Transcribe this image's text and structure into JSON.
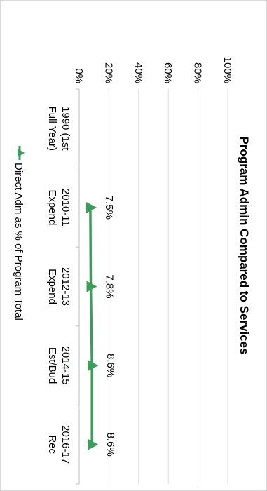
{
  "chart_data": {
    "type": "line",
    "title": "Program Admin Compared to Services",
    "categories": [
      [
        "1990 (1st",
        "Full Year)"
      ],
      [
        "2010-11",
        "Expend"
      ],
      [
        "2012-13",
        "Expend"
      ],
      [
        "2014-15",
        "Est/Bud"
      ],
      [
        "2016-17",
        "Rec"
      ]
    ],
    "series": [
      {
        "name": "Direct Adm as % of Program Total",
        "values": [
          null,
          7.5,
          7.8,
          8.6,
          8.6
        ],
        "data_labels": [
          "",
          "7.5%",
          "7.8%",
          "8.6%",
          "8.6%"
        ],
        "color": "#3a9d5a",
        "marker": "triangle"
      }
    ],
    "y_ticks": [
      "0%",
      "20%",
      "40%",
      "60%",
      "80%",
      "100%"
    ],
    "ylim": [
      0,
      100
    ],
    "grid": true,
    "legend_position": "bottom",
    "orientation": "rotated-90-clockwise"
  }
}
